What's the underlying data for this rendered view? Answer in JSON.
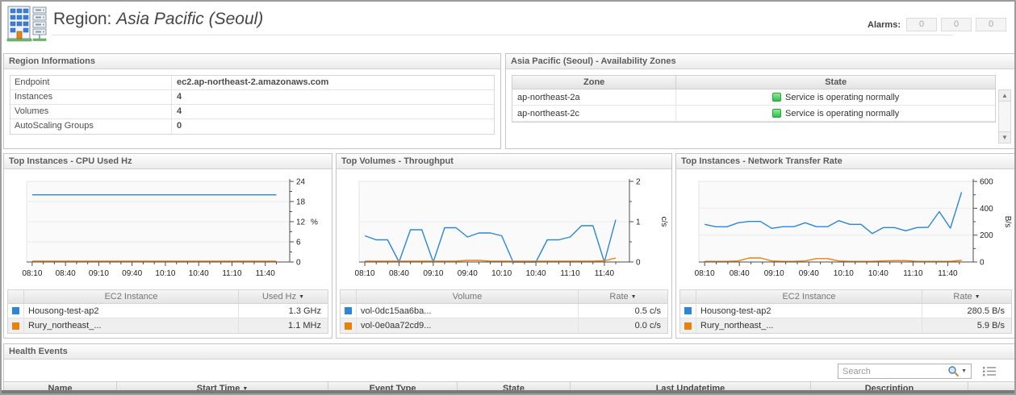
{
  "header": {
    "title_prefix": "Region:",
    "title_region": "Asia Pacific (Seoul)",
    "alarms_label": "Alarms:",
    "alarm_counts": [
      "0",
      "0",
      "0"
    ]
  },
  "icons": {
    "sort_desc": "▼",
    "scroll_up": "▲",
    "scroll_down": "▼",
    "search_caret": "▼"
  },
  "colors": {
    "series_blue": "#2b87d8",
    "series_orange": "#e8820e",
    "status_green": "#2fbf47"
  },
  "region_info": {
    "title": "Region Informations",
    "rows": [
      {
        "label": "Endpoint",
        "value": "ec2.ap-northeast-2.amazonaws.com"
      },
      {
        "label": "Instances",
        "value": "4"
      },
      {
        "label": "Volumes",
        "value": "4"
      },
      {
        "label": "AutoScaling Groups",
        "value": "0"
      }
    ]
  },
  "availability_zones": {
    "title": "Asia Pacific (Seoul) - Availability Zones",
    "columns": [
      "Zone",
      "State"
    ],
    "rows": [
      {
        "zone": "ap-northeast-2a",
        "state": "Service is operating normally"
      },
      {
        "zone": "ap-northeast-2c",
        "state": "Service is operating normally"
      }
    ]
  },
  "chart_panels": [
    {
      "title": "Top Instances - CPU Used Hz",
      "table": {
        "name_header": "EC2 Instance",
        "value_header": "Used Hz",
        "rows": [
          {
            "name": "Housong-test-ap2",
            "value": "1.3 GHz"
          },
          {
            "name": "Rury_northeast_...",
            "value": "1.1 MHz"
          }
        ]
      }
    },
    {
      "title": "Top Volumes - Throughput",
      "table": {
        "name_header": "Volume",
        "value_header": "Rate",
        "rows": [
          {
            "name": "vol-0dc15aa6ba...",
            "value": "0.5 c/s"
          },
          {
            "name": "vol-0e0aa72cd9...",
            "value": "0.0 c/s"
          }
        ]
      }
    },
    {
      "title": "Top Instances - Network Transfer Rate",
      "table": {
        "name_header": "EC2 Instance",
        "value_header": "Rate",
        "rows": [
          {
            "name": "Housong-test-ap2",
            "value": "280.5 B/s"
          },
          {
            "name": "Rury_northeast_...",
            "value": "5.9 B/s"
          }
        ]
      }
    }
  ],
  "chart_data": [
    {
      "type": "line",
      "title": "Top Instances - CPU Used Hz",
      "ylabel": "%",
      "unit_rotated": false,
      "ylim": [
        0,
        24
      ],
      "yticks": [
        0,
        6,
        12,
        18,
        24
      ],
      "x_range": [
        0,
        237
      ],
      "x_ticks_min": [
        5,
        35,
        65,
        95,
        125,
        155,
        185,
        215
      ],
      "x_tick_labels": [
        "08:10",
        "08:40",
        "09:10",
        "09:40",
        "10:10",
        "10:40",
        "11:10",
        "11:40"
      ],
      "legend_position": "table-below",
      "grid": true,
      "series": [
        {
          "name": "Housong-test-ap2",
          "color": "#2b87d8",
          "x_start": 5,
          "x_step": 10,
          "values": [
            20,
            20,
            20,
            20,
            20,
            20,
            20,
            20,
            20,
            20,
            20,
            20,
            20,
            20,
            20,
            20,
            20,
            20,
            20,
            20,
            20,
            20,
            20
          ]
        },
        {
          "name": "Rury_northeast_...",
          "color": "#e8820e",
          "x_start": 5,
          "x_step": 10,
          "values": [
            0.25,
            0.25,
            0.25,
            0.25,
            0.25,
            0.25,
            0.25,
            0.25,
            0.25,
            0.25,
            0.25,
            0.25,
            0.25,
            0.25,
            0.25,
            0.25,
            0.25,
            0.25,
            0.25,
            0.25,
            0.25,
            0.25,
            0.25
          ]
        }
      ]
    },
    {
      "type": "line",
      "title": "Top Volumes - Throughput",
      "ylabel": "c/s",
      "unit_rotated": true,
      "ylim": [
        0,
        2
      ],
      "yticks": [
        0,
        1,
        2
      ],
      "x_range": [
        0,
        237
      ],
      "x_ticks_min": [
        5,
        35,
        65,
        95,
        125,
        155,
        185,
        215
      ],
      "x_tick_labels": [
        "08:10",
        "08:40",
        "09:10",
        "09:40",
        "10:10",
        "10:40",
        "11:10",
        "11:40"
      ],
      "legend_position": "table-below",
      "grid": true,
      "series": [
        {
          "name": "vol-0dc15aa6ba...",
          "color": "#2b87d8",
          "x_start": 5,
          "x_step": 10,
          "values": [
            0.65,
            0.55,
            0.55,
            0,
            0.8,
            0.8,
            0,
            0.85,
            0.85,
            0.62,
            0.72,
            0.72,
            0.65,
            0,
            0,
            0,
            0.55,
            0.55,
            0.62,
            0.9,
            0.9,
            0,
            1.05
          ]
        },
        {
          "name": "vol-0e0aa72cd9...",
          "color": "#e8820e",
          "x_start": 5,
          "x_step": 10,
          "values": [
            0.02,
            0.02,
            0.02,
            0.02,
            0.02,
            0.02,
            0.02,
            0.02,
            0.02,
            0.04,
            0.04,
            0.02,
            0.02,
            0.02,
            0.02,
            0.02,
            0.02,
            0.02,
            0.02,
            0.02,
            0.02,
            0.03,
            0.1
          ]
        }
      ]
    },
    {
      "type": "line",
      "title": "Top Instances - Network Transfer Rate",
      "ylabel": "B/s",
      "unit_rotated": true,
      "ylim": [
        0,
        600
      ],
      "yticks": [
        0,
        200,
        400,
        600
      ],
      "x_range": [
        0,
        237
      ],
      "x_ticks_min": [
        5,
        35,
        65,
        95,
        125,
        155,
        185,
        215
      ],
      "x_tick_labels": [
        "08:10",
        "08:40",
        "09:10",
        "09:40",
        "10:10",
        "10:40",
        "11:10",
        "11:40"
      ],
      "legend_position": "table-below",
      "grid": true,
      "series": [
        {
          "name": "Housong-test-ap2",
          "color": "#2b87d8",
          "x_start": 5,
          "x_step": 9.65,
          "values": [
            280,
            262,
            262,
            292,
            302,
            302,
            250,
            263,
            263,
            292,
            263,
            263,
            308,
            280,
            280,
            212,
            256,
            256,
            232,
            256,
            258,
            375,
            252,
            520
          ]
        },
        {
          "name": "Rury_northeast_...",
          "color": "#e8820e",
          "x_start": 5,
          "x_step": 9.65,
          "values": [
            5,
            5,
            5,
            8,
            30,
            30,
            8,
            5,
            5,
            8,
            25,
            25,
            8,
            5,
            5,
            5,
            8,
            10,
            10,
            5,
            5,
            5,
            5,
            12
          ]
        }
      ]
    }
  ],
  "health_events": {
    "title": "Health Events",
    "search_placeholder": "Search",
    "columns": [
      "Name",
      "Start Time",
      "Event Type",
      "State",
      "Last Updatetime",
      "Description"
    ],
    "sorted_column": "Start Time"
  }
}
